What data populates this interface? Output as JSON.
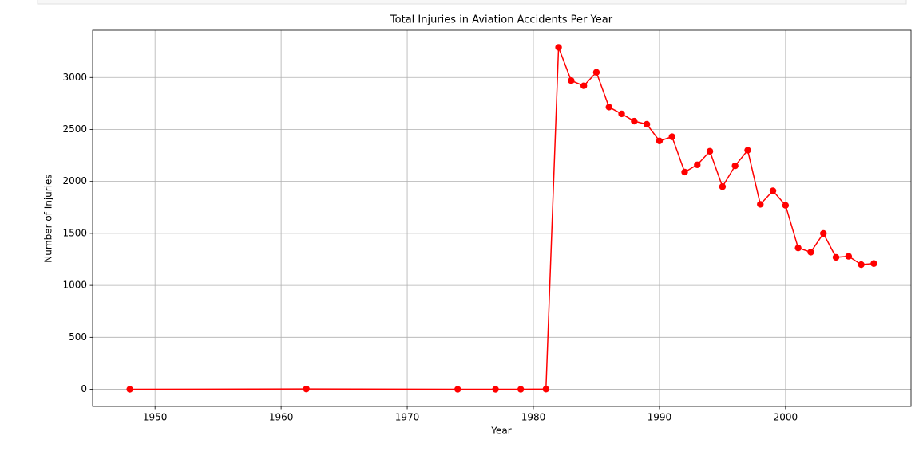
{
  "chart_data": {
    "type": "line",
    "title": "Total Injuries in Aviation Accidents Per Year",
    "x_label": "Year",
    "y_label": "Number of Injuries",
    "x": [
      1948,
      1962,
      1974,
      1977,
      1979,
      1981,
      1982,
      1983,
      1984,
      1985,
      1986,
      1987,
      1988,
      1989,
      1990,
      1991,
      1992,
      1993,
      1994,
      1995,
      1996,
      1997,
      1998,
      1999,
      2000,
      2001,
      2002,
      2003,
      2004,
      2005,
      2006,
      2007
    ],
    "series": [
      {
        "name": "Injuries",
        "color": "red",
        "values": [
          0,
          3,
          0,
          0,
          0,
          2,
          3290,
          2970,
          2920,
          3050,
          2715,
          2650,
          2580,
          2550,
          2390,
          2430,
          2090,
          2160,
          2290,
          1950,
          2150,
          2300,
          1780,
          1910,
          1770,
          1360,
          1320,
          1500,
          1270,
          1280,
          1200,
          1210
        ]
      }
    ],
    "xlim": [
      1945.05,
      2009.95
    ],
    "xticks": [
      1950,
      1960,
      1970,
      1980,
      1990,
      2000
    ],
    "ylim": [
      -164.5,
      3454.5
    ],
    "yticks": [
      0,
      500,
      1000,
      1500,
      2000,
      2500,
      3000
    ],
    "grid": true
  }
}
